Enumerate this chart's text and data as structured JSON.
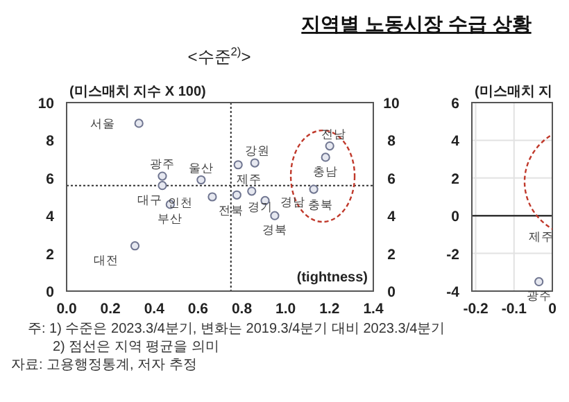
{
  "chart_data": [
    {
      "type": "scatter",
      "title": "지역별 노동시장 수급 상황",
      "subtitle": "<수준$^{2)}$>",
      "xlabel": "(tightness)",
      "ylabel": "(미스매치 지수 X 100)",
      "series": [
        {
          "color": "#6f7590",
          "x": [
            0.33,
            0.437,
            0.437,
            0.473,
            0.614,
            0.665,
            0.312,
            0.859,
            0.783,
            0.777,
            0.845,
            0.906,
            0.95,
            1.128,
            1.182,
            1.201
          ],
          "values": [
            8.9,
            6.1,
            5.6,
            4.6,
            5.9,
            5.0,
            2.4,
            6.8,
            6.7,
            5.1,
            5.3,
            4.8,
            4.0,
            5.4,
            7.1,
            7.7
          ]
        }
      ],
      "xlim": [
        0,
        1.4
      ],
      "xticks": [
        {
          "value": 0,
          "label": "0.0"
        },
        {
          "value": 0.2,
          "label": "0.2"
        },
        {
          "value": 0.4,
          "label": "0.4"
        },
        {
          "value": 0.6,
          "label": "0.6"
        },
        {
          "value": 0.8,
          "label": "0.8"
        },
        {
          "value": 1,
          "label": "1.0"
        },
        {
          "value": 1.2,
          "label": "1.2"
        },
        {
          "value": 1.4,
          "label": "1.4"
        }
      ],
      "ylim": [
        0,
        10
      ],
      "yticks": [
        0,
        2,
        4,
        6,
        8,
        10
      ],
      "y2lim": [
        0,
        10
      ],
      "y2ticks": [
        0,
        2,
        4,
        6,
        8,
        10
      ],
      "ref_lines": [
        {
          "axis": "x",
          "value": 0.75,
          "line_style": "dotted"
        },
        {
          "axis": "y",
          "value": 5.6,
          "line_style": "dotted"
        }
      ],
      "marker": "circle",
      "grid": false,
      "annotations": [
        {
          "text": "서울",
          "x": 0.33,
          "y": 8.9
        },
        {
          "text": "광주",
          "x": 0.437,
          "y": 6.1
        },
        {
          "text": "대구",
          "x": 0.437,
          "y": 5.6
        },
        {
          "text": "부산",
          "x": 0.473,
          "y": 4.6
        },
        {
          "text": "울산",
          "x": 0.614,
          "y": 5.9
        },
        {
          "text": "인천",
          "x": 0.665,
          "y": 5.0
        },
        {
          "text": "대전",
          "x": 0.312,
          "y": 2.4
        },
        {
          "text": "강원",
          "x": 0.859,
          "y": 6.8
        },
        {
          "text": "제주",
          "x": 0.783,
          "y": 6.7
        },
        {
          "text": "전북",
          "x": 0.777,
          "y": 5.1
        },
        {
          "text": "경기",
          "x": 0.845,
          "y": 5.3
        },
        {
          "text": "경남",
          "x": 0.906,
          "y": 4.8
        },
        {
          "text": "경북",
          "x": 0.95,
          "y": 4.0
        },
        {
          "text": "충북",
          "x": 1.128,
          "y": 5.4
        },
        {
          "text": "충남",
          "x": 1.182,
          "y": 7.1
        },
        {
          "text": "전남",
          "x": 1.201,
          "y": 7.7
        },
        "주: 1) 수준은 2023.3/4분기, 변화는 2019.3/4분기 대비 2023.3/4분기",
        "2) 점선은 지역 평균을 의미",
        "자료: 고용행정통계, 저자 추정"
      ]
    },
    {
      "type": "scatter",
      "ylabel": "(미스매치 지",
      "series": [
        {
          "color": "#6f7590",
          "x": [
            -0.035
          ],
          "values": [
            -3.5
          ]
        }
      ],
      "xlim": [
        -0.21,
        0
      ],
      "xticks": [
        -0.2,
        -0.1,
        0
      ],
      "ylim": [
        -4,
        6
      ],
      "yticks": [
        -4,
        -2,
        0,
        2,
        4,
        6
      ],
      "ref_lines": [
        {
          "axis": "y",
          "value": 0,
          "line_style": "solid"
        }
      ],
      "marker": "circle",
      "grid": true,
      "annotations": [
        {
          "text": "광주",
          "x": -0.035,
          "y": -3.5
        },
        "제주"
      ]
    }
  ]
}
